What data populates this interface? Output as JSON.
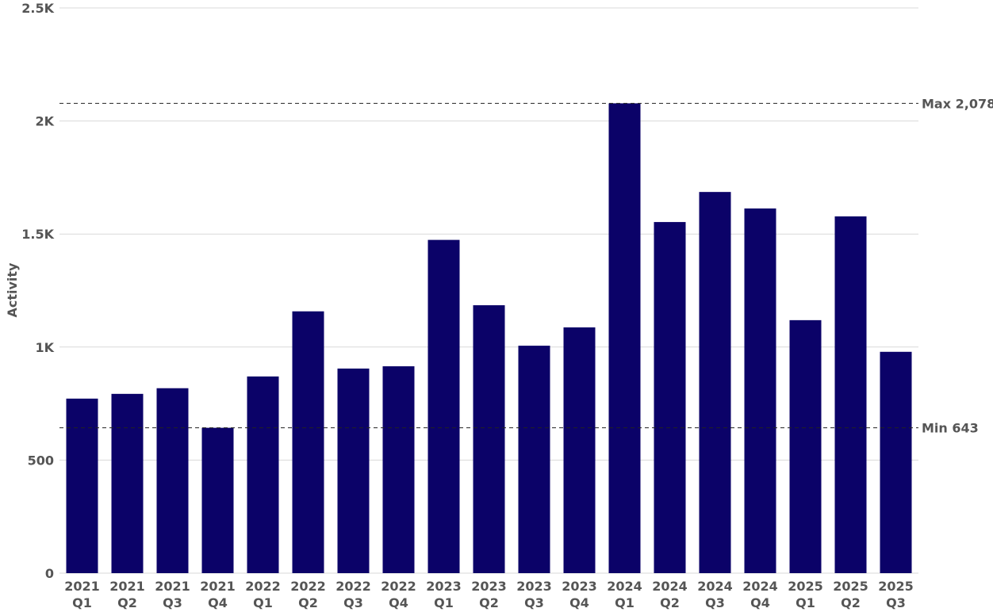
{
  "chart_data": {
    "type": "bar",
    "title": "",
    "xlabel": "",
    "ylabel": "Activity",
    "ylim": [
      0,
      2500
    ],
    "y_ticks": [
      {
        "value": 0,
        "label": "0"
      },
      {
        "value": 500,
        "label": "500"
      },
      {
        "value": 1000,
        "label": "1K"
      },
      {
        "value": 1500,
        "label": "1.5K"
      },
      {
        "value": 2000,
        "label": "2K"
      },
      {
        "value": 2500,
        "label": "2.5K"
      }
    ],
    "grid": true,
    "bar_color": "#0b0268",
    "categories": [
      [
        "2021",
        "Q1"
      ],
      [
        "2021",
        "Q2"
      ],
      [
        "2021",
        "Q3"
      ],
      [
        "2021",
        "Q4"
      ],
      [
        "2022",
        "Q1"
      ],
      [
        "2022",
        "Q2"
      ],
      [
        "2022",
        "Q3"
      ],
      [
        "2022",
        "Q4"
      ],
      [
        "2023",
        "Q1"
      ],
      [
        "2023",
        "Q2"
      ],
      [
        "2023",
        "Q3"
      ],
      [
        "2023",
        "Q4"
      ],
      [
        "2024",
        "Q1"
      ],
      [
        "2024",
        "Q2"
      ],
      [
        "2024",
        "Q3"
      ],
      [
        "2024",
        "Q4"
      ],
      [
        "2025",
        "Q1"
      ],
      [
        "2025",
        "Q2"
      ],
      [
        "2025",
        "Q3"
      ]
    ],
    "values": [
      772,
      793,
      818,
      643,
      870,
      1158,
      905,
      915,
      1474,
      1185,
      1006,
      1087,
      2078,
      1553,
      1686,
      1613,
      1119,
      1578,
      979
    ],
    "reference_lines": [
      {
        "value": 2078,
        "label": "Max 2,078"
      },
      {
        "value": 643,
        "label": "Min 643"
      }
    ]
  }
}
